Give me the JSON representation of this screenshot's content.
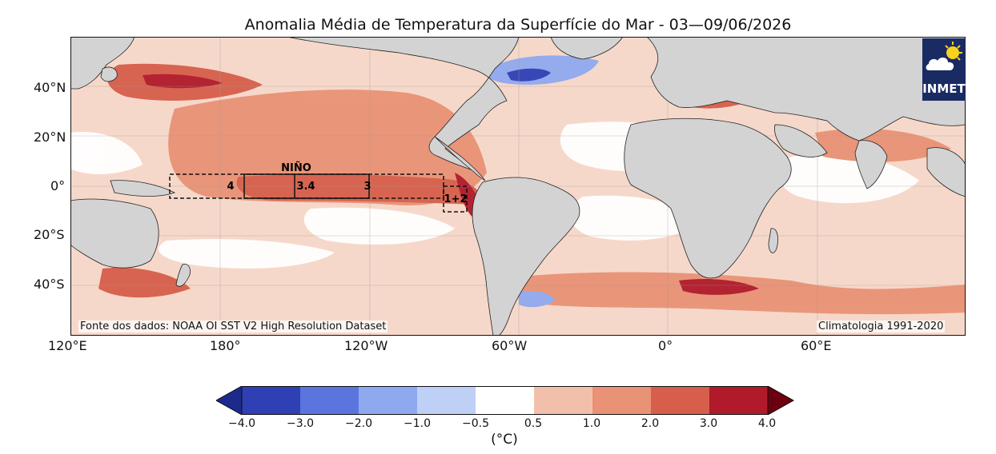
{
  "title": "Anomalia Média de Temperatura da Superfície do Mar - 03—09/06/2026",
  "lat_labels": [
    "40°N",
    "20°N",
    "0°",
    "20°S",
    "40°S"
  ],
  "lon_labels": [
    "120°E",
    "180°",
    "120°W",
    "60°W",
    "0°",
    "60°E"
  ],
  "nino": {
    "title": "NIÑO",
    "regions": [
      "4",
      "3.4",
      "3",
      "1+2"
    ]
  },
  "source_note": "Fonte dos dados: NOAA OI SST V2 High Resolution Dataset",
  "climatology_note": "Climatologia 1991-2020",
  "logo_text": "INMET",
  "colorbar": {
    "ticks": [
      "−4.0",
      "−3.0",
      "−2.0",
      "−1.0",
      "−0.5",
      "0.5",
      "1.0",
      "2.0",
      "3.0",
      "4.0"
    ],
    "unit": "(°C)",
    "colors": [
      "#2f3fb4",
      "#5a76de",
      "#8fa9ef",
      "#bfd0f7",
      "#ffffff",
      "#f2c0aa",
      "#e99275",
      "#d65e4b",
      "#b01a2a"
    ],
    "under_color": "#1b2a8c",
    "over_color": "#6b0010"
  },
  "land_color": "#d3d3d3"
}
